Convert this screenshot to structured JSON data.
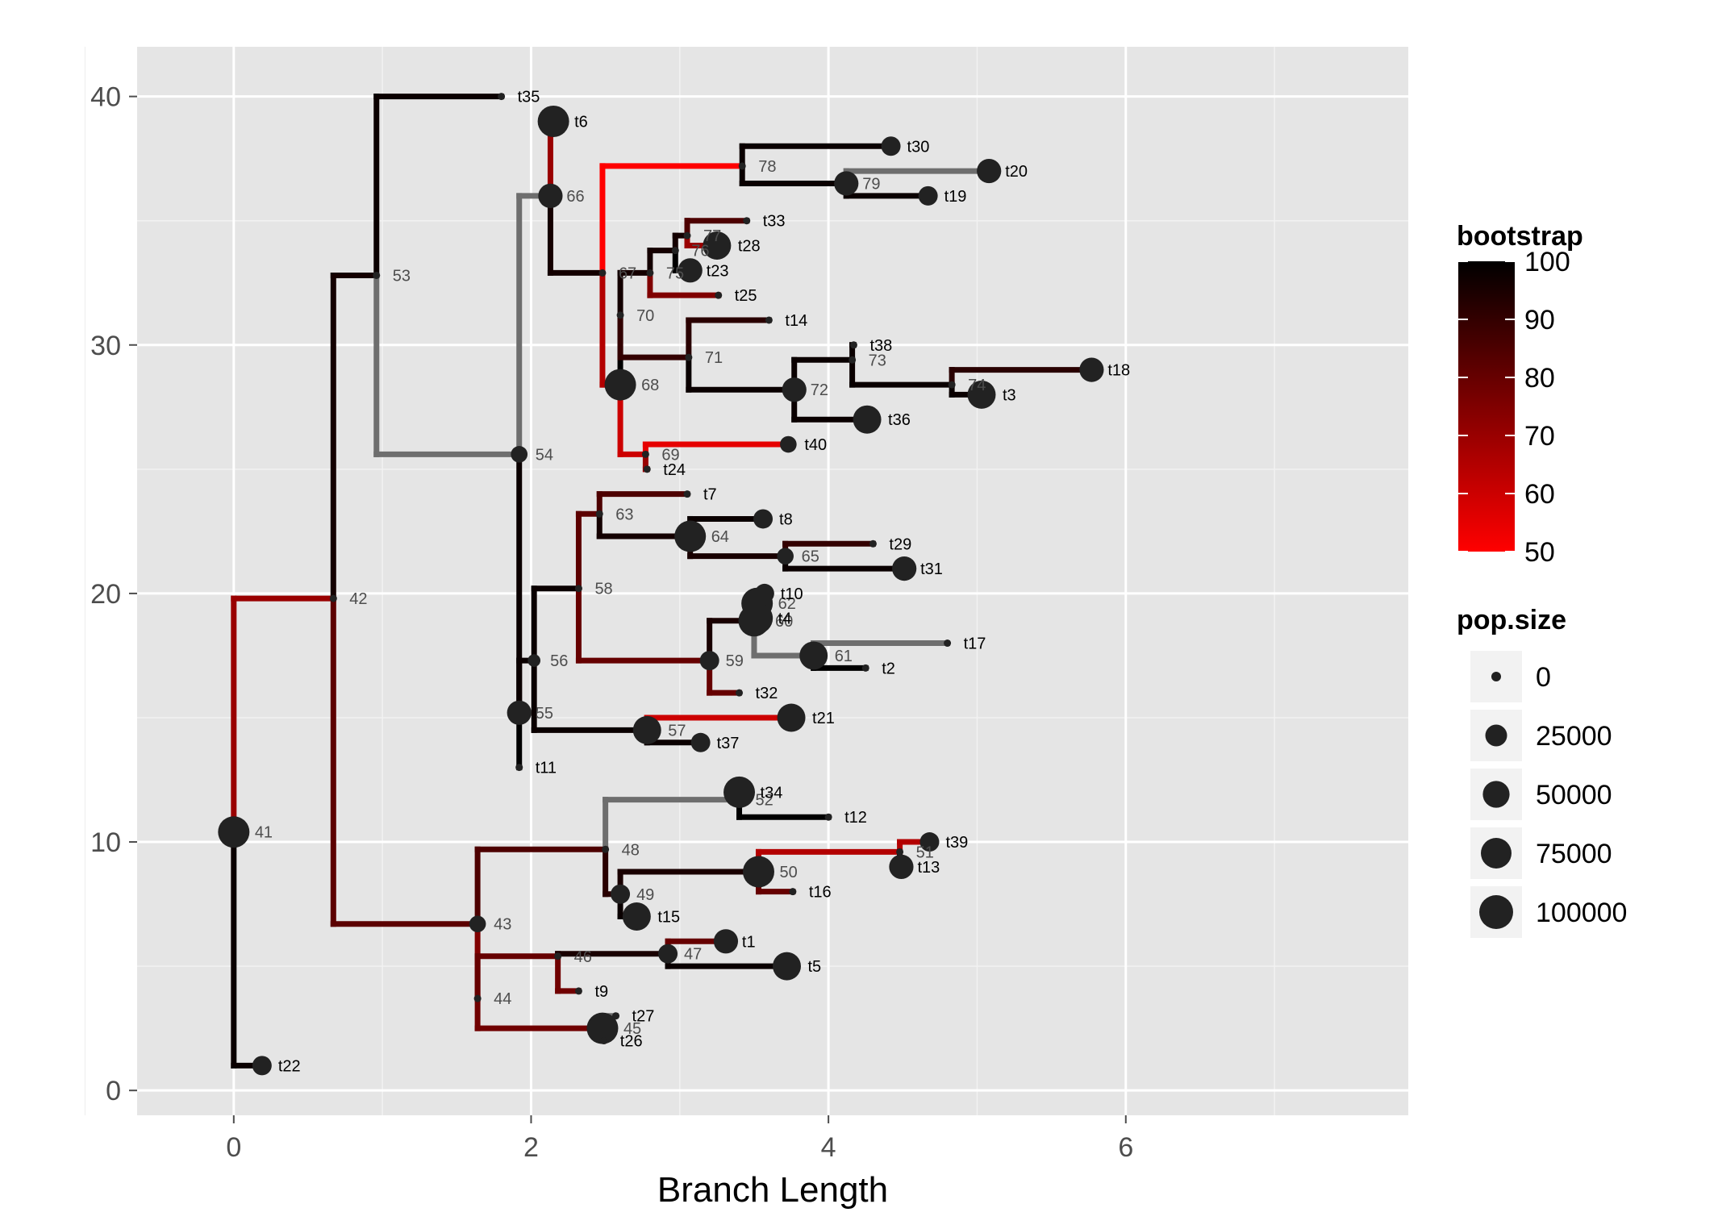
{
  "chart_data": {
    "type": "tree",
    "xlabel": "Branch Length",
    "ylabel": "",
    "xlim": [
      -0.65,
      7.9
    ],
    "ylim": [
      -1,
      42
    ],
    "x_ticks": [
      0,
      2,
      4,
      6
    ],
    "y_ticks": [
      0,
      10,
      20,
      30,
      40
    ],
    "grid": true,
    "legend_position": "right",
    "colors": {
      "panel": "#e5e5e5",
      "grid_major": "#ffffff",
      "grid_minor": "#f2f2f2",
      "na_branch": "#6e6e6e",
      "point": "#222222",
      "scale_low": "#ff0000",
      "scale_high": "#000000"
    },
    "nodes": [
      {
        "id": "41",
        "x": 0.0,
        "y": 10.4,
        "pop": 100000,
        "bootstrap": 85,
        "tip": false
      },
      {
        "id": "42",
        "x": 0.67,
        "y": 19.8,
        "pop": 0,
        "bootstrap": 70,
        "tip": false
      },
      {
        "id": "43",
        "x": 1.64,
        "y": 6.7,
        "pop": 15000,
        "bootstrap": 82,
        "tip": false
      },
      {
        "id": "44",
        "x": 1.64,
        "y": 3.7,
        "pop": 0,
        "bootstrap": 75,
        "tip": false
      },
      {
        "id": "45",
        "x": 2.48,
        "y": 2.5,
        "pop": 100000,
        "bootstrap": 78,
        "tip": false
      },
      {
        "id": "46",
        "x": 2.18,
        "y": 5.4,
        "pop": 0,
        "bootstrap": 80,
        "tip": false
      },
      {
        "id": "47",
        "x": 2.92,
        "y": 5.5,
        "pop": 25000,
        "bootstrap": 95,
        "tip": false
      },
      {
        "id": "48",
        "x": 2.5,
        "y": 9.7,
        "pop": 0,
        "bootstrap": 85,
        "tip": false
      },
      {
        "id": "49",
        "x": 2.6,
        "y": 7.9,
        "pop": 25000,
        "bootstrap": 92,
        "tip": false
      },
      {
        "id": "50",
        "x": 3.53,
        "y": 8.8,
        "pop": 100000,
        "bootstrap": 95,
        "tip": false
      },
      {
        "id": "51",
        "x": 4.48,
        "y": 9.6,
        "pop": 0,
        "bootstrap": 65,
        "tip": false
      },
      {
        "id": "52",
        "x": 3.4,
        "y": 11.7,
        "pop": 0,
        "bootstrap": null,
        "tip": false
      },
      {
        "id": "53",
        "x": 0.96,
        "y": 32.8,
        "pop": 0,
        "bootstrap": 96,
        "tip": false
      },
      {
        "id": "54",
        "x": 1.92,
        "y": 25.6,
        "pop": 15000,
        "bootstrap": null,
        "tip": false
      },
      {
        "id": "55",
        "x": 1.92,
        "y": 15.2,
        "pop": 50000,
        "bootstrap": 98,
        "tip": false
      },
      {
        "id": "56",
        "x": 2.02,
        "y": 17.3,
        "pop": 5000,
        "bootstrap": 98,
        "tip": false
      },
      {
        "id": "57",
        "x": 2.78,
        "y": 14.5,
        "pop": 75000,
        "bootstrap": 98,
        "tip": false
      },
      {
        "id": "58",
        "x": 2.32,
        "y": 20.2,
        "pop": 0,
        "bootstrap": 98,
        "tip": false
      },
      {
        "id": "59",
        "x": 3.2,
        "y": 17.3,
        "pop": 25000,
        "bootstrap": 80,
        "tip": false
      },
      {
        "id": "60",
        "x": 3.5,
        "y": 18.9,
        "pop": 100000,
        "bootstrap": 95,
        "tip": false
      },
      {
        "id": "61",
        "x": 3.9,
        "y": 17.5,
        "pop": 75000,
        "bootstrap": null,
        "tip": false
      },
      {
        "id": "62",
        "x": 3.52,
        "y": 19.6,
        "pop": 100000,
        "bootstrap": 95,
        "tip": false
      },
      {
        "id": "63",
        "x": 2.46,
        "y": 23.2,
        "pop": 0,
        "bootstrap": 82,
        "tip": false
      },
      {
        "id": "64",
        "x": 3.07,
        "y": 22.3,
        "pop": 100000,
        "bootstrap": 96,
        "tip": false
      },
      {
        "id": "65",
        "x": 3.71,
        "y": 21.5,
        "pop": 15000,
        "bootstrap": 95,
        "tip": false
      },
      {
        "id": "66",
        "x": 2.13,
        "y": 36.0,
        "pop": 50000,
        "bootstrap": null,
        "tip": false
      },
      {
        "id": "67",
        "x": 2.48,
        "y": 32.9,
        "pop": 0,
        "bootstrap": 96,
        "tip": false
      },
      {
        "id": "68",
        "x": 2.6,
        "y": 28.4,
        "pop": 100000,
        "bootstrap": 65,
        "tip": false
      },
      {
        "id": "69",
        "x": 2.77,
        "y": 25.6,
        "pop": 0,
        "bootstrap": 60,
        "tip": false
      },
      {
        "id": "70",
        "x": 2.6,
        "y": 31.2,
        "pop": 0,
        "bootstrap": 100,
        "tip": false
      },
      {
        "id": "71",
        "x": 3.06,
        "y": 29.5,
        "pop": 0,
        "bootstrap": 90,
        "tip": false
      },
      {
        "id": "72",
        "x": 3.77,
        "y": 28.2,
        "pop": 50000,
        "bootstrap": 98,
        "tip": false
      },
      {
        "id": "73",
        "x": 4.16,
        "y": 29.4,
        "pop": 0,
        "bootstrap": 98,
        "tip": false
      },
      {
        "id": "74",
        "x": 4.83,
        "y": 28.4,
        "pop": 0,
        "bootstrap": 98,
        "tip": false
      },
      {
        "id": "75",
        "x": 2.8,
        "y": 32.9,
        "pop": 0,
        "bootstrap": 96,
        "tip": false
      },
      {
        "id": "76",
        "x": 2.97,
        "y": 33.8,
        "pop": 0,
        "bootstrap": 96,
        "tip": false
      },
      {
        "id": "77",
        "x": 3.05,
        "y": 34.4,
        "pop": 0,
        "bootstrap": 96,
        "tip": false
      },
      {
        "id": "78",
        "x": 3.42,
        "y": 37.2,
        "pop": 0,
        "bootstrap": 50,
        "tip": false
      },
      {
        "id": "79",
        "x": 4.12,
        "y": 36.5,
        "pop": 50000,
        "bootstrap": 98,
        "tip": false
      },
      {
        "id": "t1",
        "x": 3.31,
        "y": 6.0,
        "pop": 50000,
        "bootstrap": 80,
        "tip": true
      },
      {
        "id": "t2",
        "x": 4.25,
        "y": 17.0,
        "pop": 0,
        "bootstrap": 100,
        "tip": true
      },
      {
        "id": "t3",
        "x": 5.03,
        "y": 28.0,
        "pop": 75000,
        "bootstrap": 98,
        "tip": true
      },
      {
        "id": "t4",
        "x": 3.52,
        "y": 19.0,
        "pop": 100000,
        "bootstrap": 95,
        "tip": true
      },
      {
        "id": "t5",
        "x": 3.72,
        "y": 5.0,
        "pop": 75000,
        "bootstrap": 98,
        "tip": true
      },
      {
        "id": "t6",
        "x": 2.15,
        "y": 39.0,
        "pop": 100000,
        "bootstrap": 70,
        "tip": true
      },
      {
        "id": "t7",
        "x": 3.05,
        "y": 24.0,
        "pop": 0,
        "bootstrap": 85,
        "tip": true
      },
      {
        "id": "t8",
        "x": 3.56,
        "y": 23.0,
        "pop": 25000,
        "bootstrap": 98,
        "tip": true
      },
      {
        "id": "t9",
        "x": 2.32,
        "y": 4.0,
        "pop": 0,
        "bootstrap": 78,
        "tip": true
      },
      {
        "id": "t10",
        "x": 3.57,
        "y": 20.0,
        "pop": 25000,
        "bootstrap": 95,
        "tip": true
      },
      {
        "id": "t11",
        "x": 1.92,
        "y": 13.0,
        "pop": 0,
        "bootstrap": 100,
        "tip": true
      },
      {
        "id": "t12",
        "x": 4.0,
        "y": 11.0,
        "pop": 0,
        "bootstrap": 100,
        "tip": true
      },
      {
        "id": "t13",
        "x": 4.49,
        "y": 9.0,
        "pop": 50000,
        "bootstrap": 98,
        "tip": true
      },
      {
        "id": "t14",
        "x": 3.6,
        "y": 31.0,
        "pop": 0,
        "bootstrap": 92,
        "tip": true
      },
      {
        "id": "t15",
        "x": 2.71,
        "y": 7.0,
        "pop": 75000,
        "bootstrap": 98,
        "tip": true
      },
      {
        "id": "t16",
        "x": 3.76,
        "y": 8.0,
        "pop": 0,
        "bootstrap": 80,
        "tip": true
      },
      {
        "id": "t17",
        "x": 4.8,
        "y": 18.0,
        "pop": 0,
        "bootstrap": null,
        "tip": true
      },
      {
        "id": "t18",
        "x": 5.77,
        "y": 29.0,
        "pop": 50000,
        "bootstrap": 92,
        "tip": true
      },
      {
        "id": "t19",
        "x": 4.67,
        "y": 36.0,
        "pop": 25000,
        "bootstrap": 98,
        "tip": true
      },
      {
        "id": "t20",
        "x": 5.08,
        "y": 37.0,
        "pop": 50000,
        "bootstrap": null,
        "tip": true
      },
      {
        "id": "t21",
        "x": 3.75,
        "y": 15.0,
        "pop": 75000,
        "bootstrap": 60,
        "tip": true
      },
      {
        "id": "t22",
        "x": 0.19,
        "y": 1.0,
        "pop": 25000,
        "bootstrap": 98,
        "tip": true
      },
      {
        "id": "t23",
        "x": 3.07,
        "y": 33.0,
        "pop": 50000,
        "bootstrap": 100,
        "tip": true
      },
      {
        "id": "t24",
        "x": 2.78,
        "y": 25.0,
        "pop": 0,
        "bootstrap": 70,
        "tip": true
      },
      {
        "id": "t25",
        "x": 3.26,
        "y": 32.0,
        "pop": 0,
        "bootstrap": 75,
        "tip": true
      },
      {
        "id": "t26",
        "x": 2.49,
        "y": 2.0,
        "pop": 0,
        "bootstrap": 80,
        "tip": true
      },
      {
        "id": "t27",
        "x": 2.57,
        "y": 3.0,
        "pop": 0,
        "bootstrap": null,
        "tip": true
      },
      {
        "id": "t28",
        "x": 3.25,
        "y": 34.0,
        "pop": 75000,
        "bootstrap": 70,
        "tip": true
      },
      {
        "id": "t29",
        "x": 4.3,
        "y": 22.0,
        "pop": 0,
        "bootstrap": 90,
        "tip": true
      },
      {
        "id": "t30",
        "x": 4.42,
        "y": 38.0,
        "pop": 25000,
        "bootstrap": 98,
        "tip": true
      },
      {
        "id": "t31",
        "x": 4.51,
        "y": 21.0,
        "pop": 50000,
        "bootstrap": 98,
        "tip": true
      },
      {
        "id": "t32",
        "x": 3.4,
        "y": 16.0,
        "pop": 0,
        "bootstrap": 80,
        "tip": true
      },
      {
        "id": "t33",
        "x": 3.45,
        "y": 35.0,
        "pop": 0,
        "bootstrap": 85,
        "tip": true
      },
      {
        "id": "t34",
        "x": 3.4,
        "y": 12.0,
        "pop": 100000,
        "bootstrap": null,
        "tip": true
      },
      {
        "id": "t35",
        "x": 1.8,
        "y": 40.0,
        "pop": 0,
        "bootstrap": 98,
        "tip": true
      },
      {
        "id": "t36",
        "x": 4.26,
        "y": 27.0,
        "pop": 75000,
        "bootstrap": 98,
        "tip": true
      },
      {
        "id": "t37",
        "x": 3.14,
        "y": 14.0,
        "pop": 25000,
        "bootstrap": 98,
        "tip": true
      },
      {
        "id": "t38",
        "x": 4.17,
        "y": 30.0,
        "pop": 0,
        "bootstrap": 98,
        "tip": true
      },
      {
        "id": "t39",
        "x": 4.68,
        "y": 10.0,
        "pop": 25000,
        "bootstrap": 65,
        "tip": true
      },
      {
        "id": "t40",
        "x": 3.73,
        "y": 26.0,
        "pop": 15000,
        "bootstrap": 55,
        "tip": true
      }
    ],
    "edges": [
      [
        "41",
        "42"
      ],
      [
        "41",
        "t22"
      ],
      [
        "42",
        "53"
      ],
      [
        "42",
        "43"
      ],
      [
        "53",
        "t35"
      ],
      [
        "53",
        "54"
      ],
      [
        "54",
        "66"
      ],
      [
        "54",
        "55"
      ],
      [
        "66",
        "t6"
      ],
      [
        "66",
        "67"
      ],
      [
        "67",
        "78"
      ],
      [
        "67",
        "68"
      ],
      [
        "78",
        "t30"
      ],
      [
        "78",
        "79"
      ],
      [
        "79",
        "t20"
      ],
      [
        "79",
        "t19"
      ],
      [
        "68",
        "70"
      ],
      [
        "68",
        "69"
      ],
      [
        "70",
        "75"
      ],
      [
        "70",
        "71"
      ],
      [
        "75",
        "76"
      ],
      [
        "75",
        "t25"
      ],
      [
        "76",
        "77"
      ],
      [
        "76",
        "t23"
      ],
      [
        "77",
        "t33"
      ],
      [
        "77",
        "t28"
      ],
      [
        "71",
        "t14"
      ],
      [
        "71",
        "72"
      ],
      [
        "72",
        "73"
      ],
      [
        "72",
        "t36"
      ],
      [
        "73",
        "t38"
      ],
      [
        "73",
        "74"
      ],
      [
        "74",
        "t18"
      ],
      [
        "74",
        "t3"
      ],
      [
        "69",
        "t40"
      ],
      [
        "69",
        "t24"
      ],
      [
        "55",
        "56"
      ],
      [
        "55",
        "t11"
      ],
      [
        "56",
        "58"
      ],
      [
        "56",
        "57"
      ],
      [
        "58",
        "63"
      ],
      [
        "58",
        "59"
      ],
      [
        "63",
        "t7"
      ],
      [
        "63",
        "64"
      ],
      [
        "64",
        "t8"
      ],
      [
        "64",
        "65"
      ],
      [
        "65",
        "t29"
      ],
      [
        "65",
        "t31"
      ],
      [
        "59",
        "60"
      ],
      [
        "59",
        "t32"
      ],
      [
        "60",
        "62"
      ],
      [
        "60",
        "61"
      ],
      [
        "62",
        "t10"
      ],
      [
        "62",
        "t4"
      ],
      [
        "61",
        "t17"
      ],
      [
        "61",
        "t2"
      ],
      [
        "57",
        "t21"
      ],
      [
        "57",
        "t37"
      ],
      [
        "43",
        "48"
      ],
      [
        "43",
        "44"
      ],
      [
        "48",
        "52"
      ],
      [
        "48",
        "49"
      ],
      [
        "52",
        "t34"
      ],
      [
        "52",
        "t12"
      ],
      [
        "49",
        "50"
      ],
      [
        "49",
        "t15"
      ],
      [
        "50",
        "51"
      ],
      [
        "50",
        "t16"
      ],
      [
        "51",
        "t39"
      ],
      [
        "51",
        "t13"
      ],
      [
        "44",
        "46"
      ],
      [
        "44",
        "45"
      ],
      [
        "46",
        "47"
      ],
      [
        "46",
        "t9"
      ],
      [
        "47",
        "t1"
      ],
      [
        "47",
        "t5"
      ],
      [
        "45",
        "t27"
      ],
      [
        "45",
        "t26"
      ]
    ],
    "legend": {
      "bootstrap": {
        "title": "bootstrap",
        "ticks": [
          "100",
          "90",
          "80",
          "70",
          "60",
          "50"
        ],
        "tick_values": [
          100,
          90,
          80,
          70,
          60,
          50
        ],
        "range": [
          50,
          100
        ]
      },
      "pop_size": {
        "title": "pop.size",
        "labels": [
          "0",
          "25000",
          "50000",
          "75000",
          "100000"
        ],
        "values": [
          0,
          25000,
          50000,
          75000,
          100000
        ]
      }
    }
  }
}
